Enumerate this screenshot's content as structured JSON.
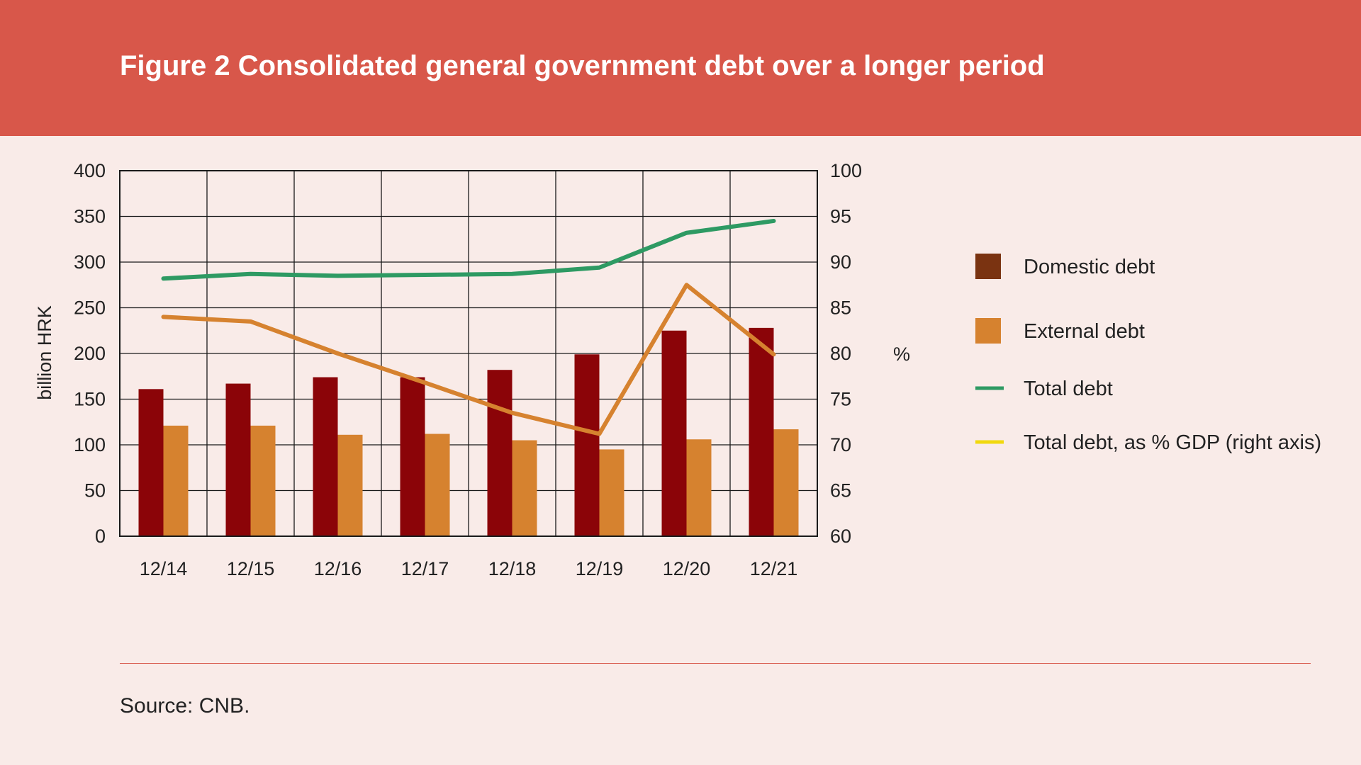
{
  "title": "Figure 2 Consolidated general government debt over a longer period",
  "source": "Source: CNB.",
  "colors": {
    "header_bg": "#d8574a",
    "page_bg": "#f9ebe8",
    "domestic_bar": "#8b0408",
    "external_bar": "#d6822f",
    "total_line": "#2e9a63",
    "pct_line": "#d6822f",
    "legend_domestic": "#7a3311",
    "legend_pct": "#f1d80e"
  },
  "chart_data": {
    "type": "bar",
    "categories": [
      "12/14",
      "12/15",
      "12/16",
      "12/17",
      "12/18",
      "12/19",
      "12/20",
      "12/21"
    ],
    "ylabel": "billion HRK",
    "y2label": "%",
    "ylim": [
      0,
      400
    ],
    "y2lim": [
      60,
      100
    ],
    "yticks": [
      0,
      50,
      100,
      150,
      200,
      250,
      300,
      350,
      400
    ],
    "y2ticks": [
      60,
      65,
      70,
      75,
      80,
      85,
      90,
      95,
      100
    ],
    "grid": true,
    "legend_position": "right",
    "series": [
      {
        "name": "Domestic debt",
        "kind": "bar",
        "axis": "left",
        "values": [
          161,
          167,
          174,
          174,
          182,
          199,
          225,
          228
        ]
      },
      {
        "name": "External debt",
        "kind": "bar",
        "axis": "left",
        "values": [
          121,
          121,
          111,
          112,
          105,
          95,
          106,
          117
        ]
      },
      {
        "name": "Total debt",
        "kind": "line",
        "axis": "left",
        "values": [
          282,
          287,
          285,
          286,
          287,
          294,
          332,
          345
        ]
      },
      {
        "name": "Total debt, as % GDP (right axis)",
        "kind": "line",
        "axis": "right",
        "values": [
          84,
          83.5,
          80,
          76.8,
          73.5,
          71.2,
          87.5,
          79.9
        ]
      }
    ]
  }
}
